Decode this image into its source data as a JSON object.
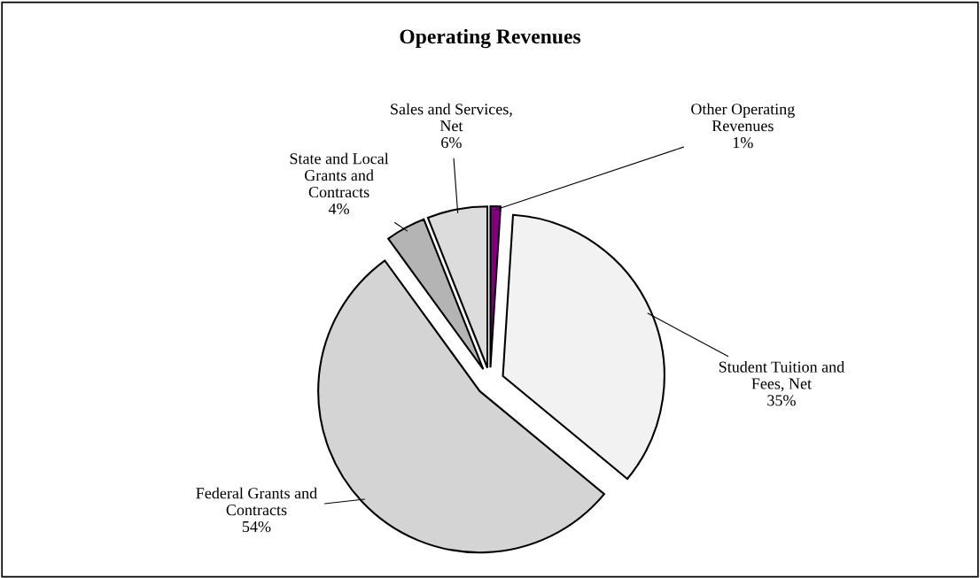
{
  "chart_data": {
    "type": "pie",
    "title": "Operating Revenues",
    "categories": [
      "Other Operating\nRevenues",
      "Student Tuition and\nFees, Net",
      "Federal Grants and\nContracts",
      "State and Local\nGrants and\nContracts",
      "Sales and Services,\nNet"
    ],
    "values": [
      1,
      35,
      54,
      4,
      6
    ],
    "colors": [
      "#800080",
      "#f2f2f2",
      "#d4d4d4",
      "#b4b4b4",
      "#dcdcdc"
    ],
    "value_labels": [
      "1%",
      "35%",
      "54%",
      "4%",
      "6%"
    ],
    "legend": false
  }
}
